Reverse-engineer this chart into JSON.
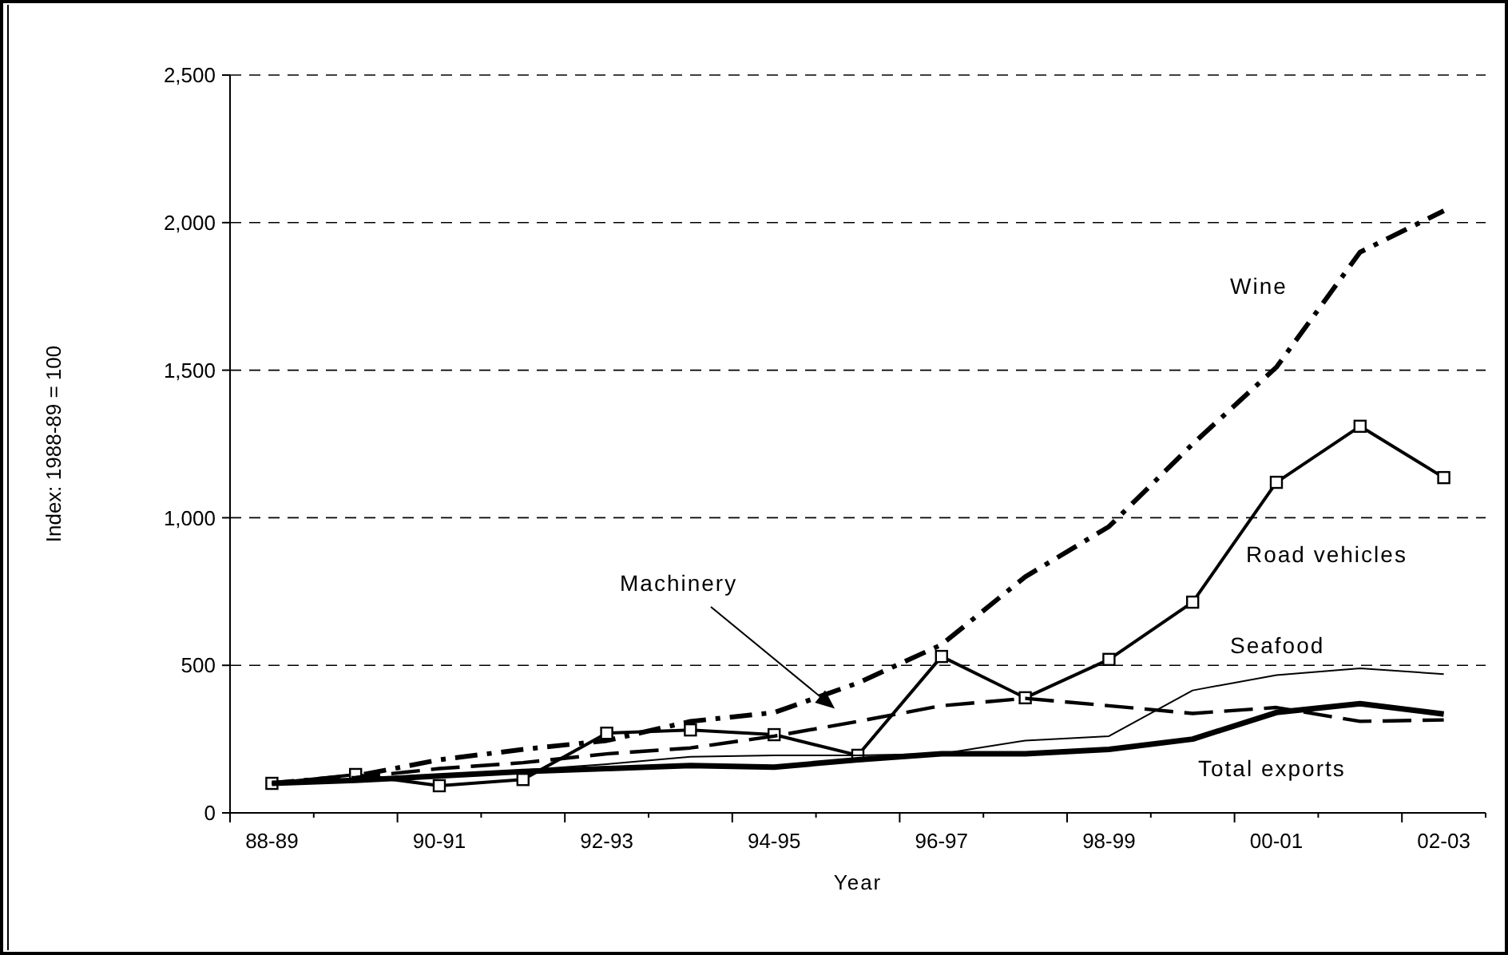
{
  "chart_data": {
    "type": "line",
    "xlabel": "Year",
    "ylabel": "Index: 1988-89 = 100",
    "categories": [
      "88-89",
      null,
      "90-91",
      null,
      "92-93",
      null,
      "94-95",
      null,
      "96-97",
      null,
      "98-99",
      null,
      "00-01",
      null,
      "02-03"
    ],
    "ylim": [
      0,
      2500
    ],
    "yticks": [
      {
        "value": 0,
        "label": "0"
      },
      {
        "value": 500,
        "label": "500"
      },
      {
        "value": 1000,
        "label": "1,000"
      },
      {
        "value": 1500,
        "label": "1,500"
      },
      {
        "value": 2000,
        "label": "2,000"
      },
      {
        "value": 2500,
        "label": "2,500"
      }
    ],
    "grid": "y",
    "series": [
      {
        "name": "Wine",
        "color": "#000000",
        "line_style": "dashed",
        "marker": "none",
        "values": [
          100,
          125,
          180,
          215,
          245,
          310,
          340,
          440,
          570,
          800,
          970,
          1250,
          1510,
          1900,
          2040
        ]
      },
      {
        "name": "Road vehicles",
        "color": "#000000",
        "line_style": "solid",
        "marker": "square",
        "values": [
          100,
          130,
          92,
          113,
          270,
          281,
          265,
          195,
          530,
          390,
          520,
          714,
          1120,
          1310,
          1136
        ]
      },
      {
        "name": "Seafood",
        "color": "#000000",
        "line_style": "solid",
        "marker": "none",
        "values": [
          100,
          115,
          130,
          145,
          165,
          190,
          195,
          195,
          200,
          245,
          260,
          415,
          467,
          490,
          470
        ]
      },
      {
        "name": "Machinery",
        "color": "#000000",
        "line_style": "dashed",
        "marker": "none",
        "values": [
          100,
          120,
          150,
          170,
          200,
          220,
          260,
          310,
          363,
          388,
          363,
          337,
          357,
          310,
          315
        ]
      },
      {
        "name": "Total exports",
        "color": "#000000",
        "line_style": "solid",
        "marker": "none",
        "values": [
          100,
          110,
          125,
          140,
          150,
          160,
          155,
          180,
          200,
          200,
          215,
          250,
          340,
          370,
          335
        ]
      }
    ]
  }
}
